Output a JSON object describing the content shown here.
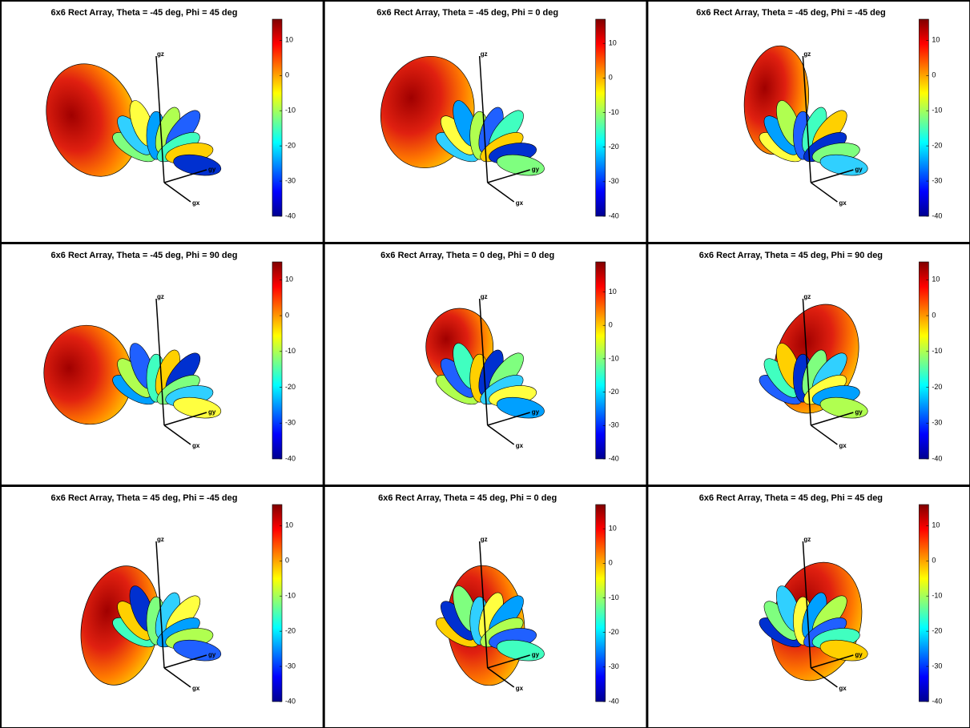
{
  "chart_data": [
    {
      "type": "surface3d",
      "title": "6x6 Rect Array, Theta = -45 deg, Phi = 45 deg",
      "clim": [
        -40,
        16
      ],
      "cticks": [
        -40,
        -30,
        -20,
        -10,
        0,
        10
      ],
      "axis_labels": [
        "gz",
        "gy",
        "gx"
      ]
    },
    {
      "type": "surface3d",
      "title": "6x6 Rect Array, Theta = -45 deg, Phi = 0 deg",
      "clim": [
        -40,
        17
      ],
      "cticks": [
        -40,
        -30,
        -20,
        -10,
        0,
        10
      ],
      "axis_labels": [
        "gz",
        "gy",
        "gx"
      ]
    },
    {
      "type": "surface3d",
      "title": "6x6 Rect Array, Theta = -45 deg, Phi = -45 deg",
      "clim": [
        -40,
        16
      ],
      "cticks": [
        -40,
        -30,
        -20,
        -10,
        0,
        10
      ],
      "axis_labels": [
        "gz",
        "gy",
        "gx"
      ]
    },
    {
      "type": "surface3d",
      "title": "6x6 Rect Array, Theta = -45 deg, Phi = 90 deg",
      "clim": [
        -40,
        15
      ],
      "cticks": [
        -40,
        -30,
        -20,
        -10,
        0,
        10
      ],
      "axis_labels": [
        "gz",
        "gy",
        "gx"
      ]
    },
    {
      "type": "surface3d",
      "title": "6x6 Rect Array, Theta = 0 deg, Phi = 0 deg",
      "clim": [
        -40,
        19
      ],
      "cticks": [
        -40,
        -30,
        -20,
        -10,
        0,
        10
      ],
      "axis_labels": [
        "gz",
        "gy",
        "gx"
      ]
    },
    {
      "type": "surface3d",
      "title": "6x6 Rect Array, Theta = 45 deg, Phi = 90 deg",
      "clim": [
        -40,
        15
      ],
      "cticks": [
        -40,
        -30,
        -20,
        -10,
        0,
        10
      ],
      "axis_labels": [
        "gz",
        "gy",
        "gx"
      ]
    },
    {
      "type": "surface3d",
      "title": "6x6 Rect Array, Theta = 45 deg, Phi = -45 deg",
      "clim": [
        -40,
        16
      ],
      "cticks": [
        -40,
        -30,
        -20,
        -10,
        0,
        10
      ],
      "axis_labels": [
        "gz",
        "gy",
        "gx"
      ]
    },
    {
      "type": "surface3d",
      "title": "6x6 Rect Array, Theta = 45 deg, Phi = 0 deg",
      "clim": [
        -40,
        17
      ],
      "cticks": [
        -40,
        -30,
        -20,
        -10,
        0,
        10
      ],
      "axis_labels": [
        "gz",
        "gy",
        "gx"
      ]
    },
    {
      "type": "surface3d",
      "title": "6x6 Rect Array, Theta = 45 deg, Phi = 45 deg",
      "clim": [
        -40,
        16
      ],
      "cticks": [
        -40,
        -30,
        -20,
        -10,
        0,
        10
      ],
      "axis_labels": [
        "gz",
        "gy",
        "gx"
      ]
    }
  ]
}
